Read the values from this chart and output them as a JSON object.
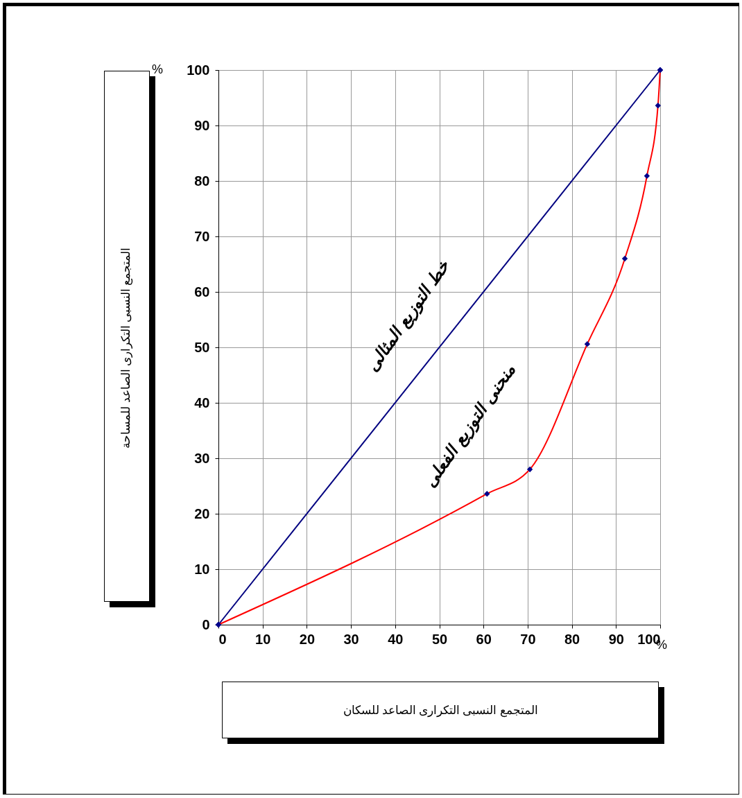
{
  "chart_data": {
    "type": "line",
    "xlabel": "المتجمع النسبى التكرارى الصاعد للسكان",
    "ylabel": "المتجمع النسبى التكرارى الصاعد للمساحة",
    "xlim": [
      0,
      100
    ],
    "ylim": [
      0,
      100
    ],
    "xticks": [
      0,
      10,
      20,
      30,
      40,
      50,
      60,
      70,
      80,
      90,
      100
    ],
    "yticks": [
      0,
      10,
      20,
      30,
      40,
      50,
      60,
      70,
      80,
      90,
      100
    ],
    "grid": true,
    "series": [
      {
        "color": "#000080",
        "x": [
          0,
          100
        ],
        "values": [
          0,
          100
        ],
        "marker": "diamond"
      },
      {
        "color": "#ff0000",
        "x": [
          0,
          60.8,
          70.5,
          83.5,
          92,
          97,
          99.5,
          100
        ],
        "values": [
          0,
          23.6,
          28,
          50.6,
          66,
          80.9,
          93.6,
          100
        ],
        "marker": "diamond"
      }
    ],
    "annotations": [
      "خط التوزيع المثالى",
      "منحنى التوزيع الفعلى",
      "%",
      "%"
    ]
  }
}
